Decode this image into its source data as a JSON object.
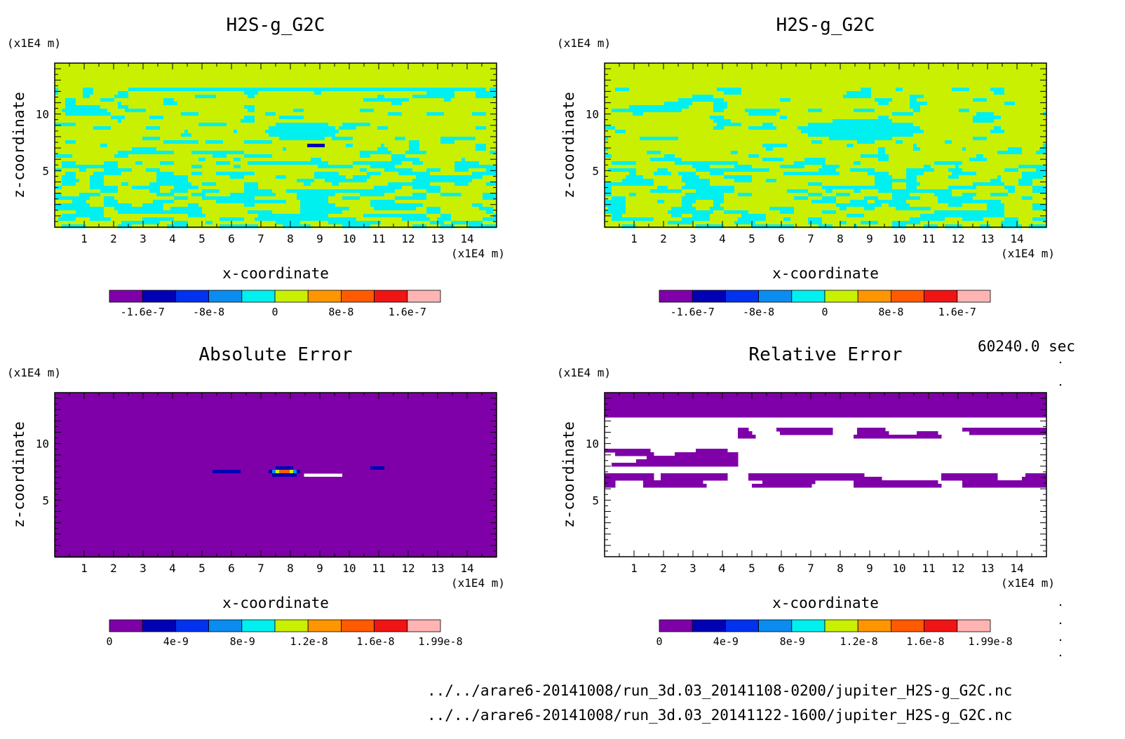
{
  "time_label": "60240.0 sec",
  "file_paths": [
    "../../arare6-20141008/run_3d.03_20141108-0200/jupiter_H2S-g_G2C.nc",
    "../../arare6-20141008/run_3d.03_20141122-1600/jupiter_H2S-g_G2C.nc"
  ],
  "chart_data": [
    {
      "type": "heatmap",
      "title": "H2S-g_G2C",
      "xlabel": "x-coordinate",
      "ylabel": "z-coordinate",
      "x_unit": "(x1E4 m)",
      "y_unit": "(x1E4 m)",
      "xlim": [
        0,
        15
      ],
      "ylim": [
        0,
        14.5
      ],
      "x_ticks": [
        1,
        2,
        3,
        4,
        5,
        6,
        7,
        8,
        9,
        10,
        11,
        12,
        13,
        14
      ],
      "y_ticks": [
        5,
        10
      ],
      "pattern": "field_a",
      "colorbar": {
        "levels": [
          -2e-07,
          -1.6e-07,
          -1.2e-07,
          -8e-08,
          -4e-08,
          0,
          4e-08,
          8e-08,
          1.2e-07,
          1.6e-07,
          2e-07
        ],
        "tick_labels": [
          "-1.6e-7",
          "-8e-8",
          "0",
          "8e-8",
          "1.6e-7"
        ]
      }
    },
    {
      "type": "heatmap",
      "title": "H2S-g_G2C",
      "xlabel": "x-coordinate",
      "ylabel": "z-coordinate",
      "x_unit": "(x1E4 m)",
      "y_unit": "(x1E4 m)",
      "xlim": [
        0,
        15
      ],
      "ylim": [
        0,
        14.5
      ],
      "x_ticks": [
        1,
        2,
        3,
        4,
        5,
        6,
        7,
        8,
        9,
        10,
        11,
        12,
        13,
        14
      ],
      "y_ticks": [
        5,
        10
      ],
      "pattern": "field_b",
      "colorbar": {
        "levels": [
          -2e-07,
          -1.6e-07,
          -1.2e-07,
          -8e-08,
          -4e-08,
          0,
          4e-08,
          8e-08,
          1.2e-07,
          1.6e-07,
          2e-07
        ],
        "tick_labels": [
          "-1.6e-7",
          "-8e-8",
          "0",
          "8e-8",
          "1.6e-7"
        ]
      }
    },
    {
      "type": "heatmap",
      "title": "Absolute Error",
      "xlabel": "x-coordinate",
      "ylabel": "z-coordinate",
      "x_unit": "(x1E4 m)",
      "y_unit": "(x1E4 m)",
      "xlim": [
        0,
        15
      ],
      "ylim": [
        0,
        14.5
      ],
      "x_ticks": [
        1,
        2,
        3,
        4,
        5,
        6,
        7,
        8,
        9,
        10,
        11,
        12,
        13,
        14
      ],
      "y_ticks": [
        5,
        10
      ],
      "pattern": "abs_error",
      "colorbar": {
        "levels": [
          0,
          2e-09,
          4e-09,
          6e-09,
          8e-09,
          1e-08,
          1.2e-08,
          1.4e-08,
          1.6e-08,
          1.8e-08,
          1.99e-08
        ],
        "tick_labels": [
          "0",
          "4e-9",
          "8e-9",
          "1.2e-8",
          "1.6e-8",
          "1.99e-8"
        ]
      }
    },
    {
      "type": "heatmap",
      "title": "Relative Error",
      "xlabel": "x-coordinate",
      "ylabel": "z-coordinate",
      "x_unit": "(x1E4 m)",
      "y_unit": "(x1E4 m)",
      "xlim": [
        0,
        15
      ],
      "ylim": [
        0,
        14.5
      ],
      "x_ticks": [
        1,
        2,
        3,
        4,
        5,
        6,
        7,
        8,
        9,
        10,
        11,
        12,
        13,
        14
      ],
      "y_ticks": [
        5,
        10
      ],
      "pattern": "rel_error",
      "colorbar": {
        "levels": [
          0,
          2e-09,
          4e-09,
          6e-09,
          8e-09,
          1e-08,
          1.2e-08,
          1.4e-08,
          1.6e-08,
          1.8e-08,
          1.99e-08
        ],
        "tick_labels": [
          "0",
          "4e-9",
          "8e-9",
          "1.2e-8",
          "1.6e-8",
          "1.99e-8"
        ]
      }
    }
  ],
  "palette": [
    "#7f00a8",
    "#0000b4",
    "#0032f0",
    "#0a8cf0",
    "#00f0f0",
    "#c8f000",
    "#ff9600",
    "#ff5a00",
    "#f01414",
    "#ffb4b4"
  ]
}
